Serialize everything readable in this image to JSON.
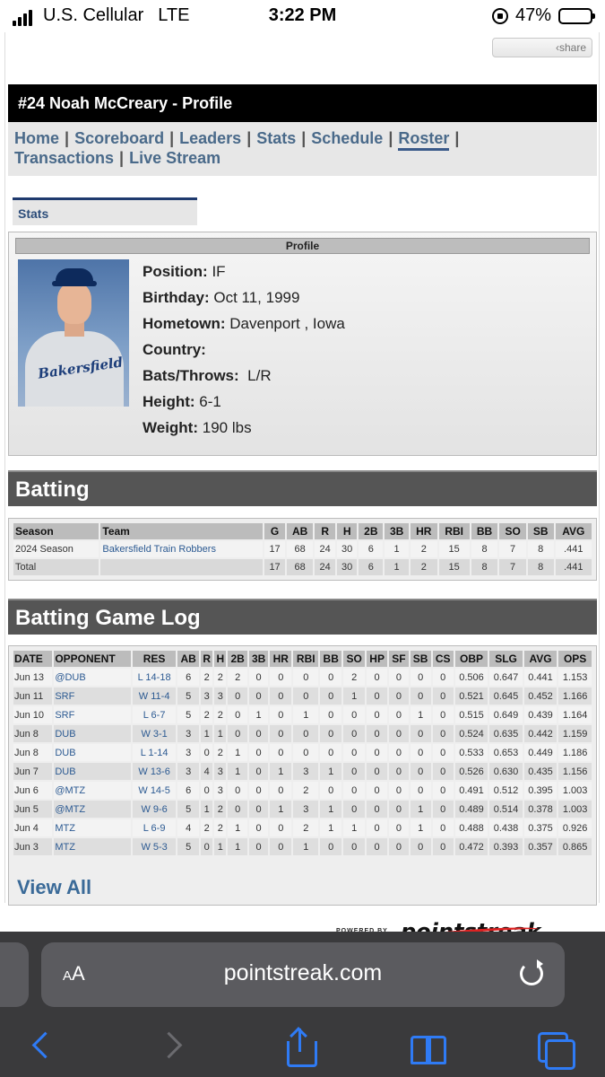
{
  "status_bar": {
    "carrier": "U.S. Cellular",
    "network": "LTE",
    "time": "3:22 PM",
    "battery_percent": "47%",
    "battery_level": 0.47
  },
  "share_label": "share",
  "title": "#24 Noah McCreary - Profile",
  "nav": {
    "items": [
      "Home",
      "Scoreboard",
      "Leaders",
      "Stats",
      "Schedule",
      "Roster",
      "Transactions",
      "Live Stream"
    ],
    "active": "Roster"
  },
  "stats_tab": "Stats",
  "profile": {
    "header": "Profile",
    "photo_text": "Bakersfield",
    "fields": [
      {
        "label": "Position:",
        "value": "IF"
      },
      {
        "label": "Birthday:",
        "value": "Oct 11, 1999"
      },
      {
        "label": "Hometown:",
        "value": "Davenport , Iowa"
      },
      {
        "label": "Country:",
        "value": ""
      },
      {
        "label": "Bats/Throws:",
        "value": "L/R"
      },
      {
        "label": "Height:",
        "value": "6-1"
      },
      {
        "label": "Weight:",
        "value": "190 lbs"
      }
    ]
  },
  "batting": {
    "title": "Batting",
    "headers": [
      "Season",
      "Team",
      "G",
      "AB",
      "R",
      "H",
      "2B",
      "3B",
      "HR",
      "RBI",
      "BB",
      "SO",
      "SB",
      "AVG"
    ],
    "rows": [
      [
        "2024 Season",
        "Bakersfield Train Robbers",
        "17",
        "68",
        "24",
        "30",
        "6",
        "1",
        "2",
        "15",
        "8",
        "7",
        "8",
        ".441"
      ],
      [
        "Total",
        "",
        "17",
        "68",
        "24",
        "30",
        "6",
        "1",
        "2",
        "15",
        "8",
        "7",
        "8",
        ".441"
      ]
    ]
  },
  "game_log": {
    "title": "Batting Game Log",
    "headers": [
      "DATE",
      "OPPONENT",
      "RES",
      "AB",
      "R",
      "H",
      "2B",
      "3B",
      "HR",
      "RBI",
      "BB",
      "SO",
      "HP",
      "SF",
      "SB",
      "CS",
      "OBP",
      "SLG",
      "AVG",
      "OPS"
    ],
    "rows": [
      [
        "Jun 13",
        "@DUB",
        "L 14-18",
        "6",
        "2",
        "2",
        "2",
        "0",
        "0",
        "0",
        "0",
        "2",
        "0",
        "0",
        "0",
        "0",
        "0.506",
        "0.647",
        "0.441",
        "1.153"
      ],
      [
        "Jun 11",
        "SRF",
        "W 11-4",
        "5",
        "3",
        "3",
        "0",
        "0",
        "0",
        "0",
        "0",
        "1",
        "0",
        "0",
        "0",
        "0",
        "0.521",
        "0.645",
        "0.452",
        "1.166"
      ],
      [
        "Jun 10",
        "SRF",
        "L 6-7",
        "5",
        "2",
        "2",
        "0",
        "1",
        "0",
        "1",
        "0",
        "0",
        "0",
        "0",
        "1",
        "0",
        "0.515",
        "0.649",
        "0.439",
        "1.164"
      ],
      [
        "Jun 8",
        "DUB",
        "W 3-1",
        "3",
        "1",
        "1",
        "0",
        "0",
        "0",
        "0",
        "0",
        "0",
        "0",
        "0",
        "0",
        "0",
        "0.524",
        "0.635",
        "0.442",
        "1.159"
      ],
      [
        "Jun 8",
        "DUB",
        "L 1-14",
        "3",
        "0",
        "2",
        "1",
        "0",
        "0",
        "0",
        "0",
        "0",
        "0",
        "0",
        "0",
        "0",
        "0.533",
        "0.653",
        "0.449",
        "1.186"
      ],
      [
        "Jun 7",
        "DUB",
        "W 13-6",
        "3",
        "4",
        "3",
        "1",
        "0",
        "1",
        "3",
        "1",
        "0",
        "0",
        "0",
        "0",
        "0",
        "0.526",
        "0.630",
        "0.435",
        "1.156"
      ],
      [
        "Jun 6",
        "@MTZ",
        "W 14-5",
        "6",
        "0",
        "3",
        "0",
        "0",
        "0",
        "2",
        "0",
        "0",
        "0",
        "0",
        "0",
        "0",
        "0.491",
        "0.512",
        "0.395",
        "1.003"
      ],
      [
        "Jun 5",
        "@MTZ",
        "W 9-6",
        "5",
        "1",
        "2",
        "0",
        "0",
        "1",
        "3",
        "1",
        "0",
        "0",
        "0",
        "1",
        "0",
        "0.489",
        "0.514",
        "0.378",
        "1.003"
      ],
      [
        "Jun 4",
        "MTZ",
        "L 6-9",
        "4",
        "2",
        "2",
        "1",
        "0",
        "0",
        "2",
        "1",
        "1",
        "0",
        "0",
        "1",
        "0",
        "0.488",
        "0.438",
        "0.375",
        "0.926"
      ],
      [
        "Jun 3",
        "MTZ",
        "W 5-3",
        "5",
        "0",
        "1",
        "1",
        "0",
        "0",
        "1",
        "0",
        "0",
        "0",
        "0",
        "0",
        "0",
        "0.472",
        "0.393",
        "0.357",
        "0.865"
      ]
    ],
    "view_all": "View All"
  },
  "powered_by": {
    "label": "POWERED BY",
    "brand": "pointstreak"
  },
  "browser": {
    "aa_label": "AA",
    "url": "pointstreak.com"
  }
}
